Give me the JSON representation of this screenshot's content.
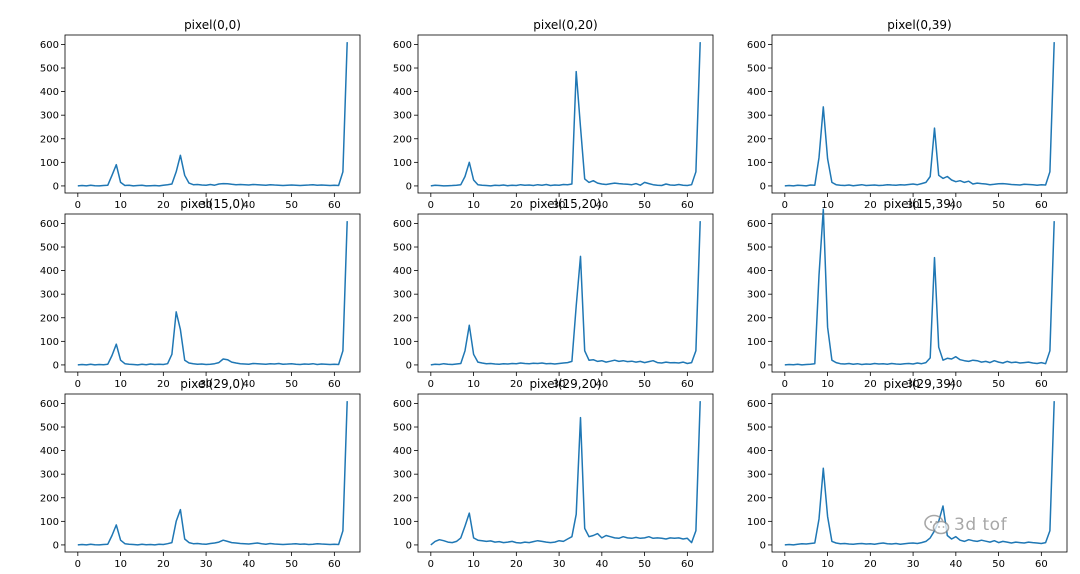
{
  "line_color": "#1f77b4",
  "chart_data": [
    {
      "type": "line",
      "title": "pixel(0,0)",
      "xlim": [
        -3,
        66
      ],
      "ylim": [
        -30,
        640
      ],
      "xticks": [
        0,
        10,
        20,
        30,
        40,
        50,
        60
      ],
      "yticks": [
        0,
        100,
        200,
        300,
        400,
        500,
        600
      ],
      "x": [
        0,
        1,
        2,
        3,
        4,
        5,
        6,
        7,
        8,
        9,
        10,
        11,
        12,
        13,
        14,
        15,
        16,
        17,
        18,
        19,
        20,
        21,
        22,
        23,
        24,
        25,
        26,
        27,
        28,
        29,
        30,
        31,
        32,
        33,
        34,
        35,
        36,
        37,
        38,
        39,
        40,
        41,
        42,
        43,
        44,
        45,
        46,
        47,
        48,
        49,
        50,
        51,
        52,
        53,
        54,
        55,
        56,
        57,
        58,
        59,
        60,
        61,
        62,
        63
      ],
      "values": [
        0,
        2,
        0,
        3,
        1,
        0,
        2,
        3,
        45,
        90,
        15,
        2,
        3,
        0,
        2,
        3,
        0,
        1,
        2,
        0,
        3,
        5,
        8,
        60,
        130,
        45,
        12,
        5,
        6,
        4,
        3,
        6,
        3,
        8,
        10,
        9,
        7,
        5,
        6,
        5,
        4,
        6,
        5,
        4,
        3,
        5,
        4,
        3,
        2,
        3,
        4,
        3,
        2,
        3,
        4,
        5,
        3,
        4,
        3,
        2,
        3,
        2,
        60,
        610
      ]
    },
    {
      "type": "line",
      "title": "pixel(0,20)",
      "xlim": [
        -3,
        66
      ],
      "ylim": [
        -30,
        640
      ],
      "xticks": [
        0,
        10,
        20,
        30,
        40,
        50,
        60
      ],
      "yticks": [
        0,
        100,
        200,
        300,
        400,
        500,
        600
      ],
      "x": [
        0,
        1,
        2,
        3,
        4,
        5,
        6,
        7,
        8,
        9,
        10,
        11,
        12,
        13,
        14,
        15,
        16,
        17,
        18,
        19,
        20,
        21,
        22,
        23,
        24,
        25,
        26,
        27,
        28,
        29,
        30,
        31,
        32,
        33,
        34,
        35,
        36,
        37,
        38,
        39,
        40,
        41,
        42,
        43,
        44,
        45,
        46,
        47,
        48,
        49,
        50,
        51,
        52,
        53,
        54,
        55,
        56,
        57,
        58,
        59,
        60,
        61,
        62,
        63
      ],
      "values": [
        0,
        3,
        2,
        0,
        1,
        2,
        3,
        5,
        40,
        100,
        25,
        5,
        3,
        2,
        0,
        3,
        2,
        4,
        1,
        3,
        2,
        5,
        3,
        4,
        2,
        5,
        3,
        6,
        2,
        4,
        3,
        6,
        5,
        8,
        485,
        250,
        30,
        15,
        22,
        12,
        8,
        6,
        9,
        12,
        10,
        8,
        7,
        5,
        10,
        3,
        15,
        10,
        5,
        3,
        2,
        8,
        4,
        3,
        6,
        3,
        2,
        5,
        60,
        610
      ]
    },
    {
      "type": "line",
      "title": "pixel(0,39)",
      "xlim": [
        -3,
        66
      ],
      "ylim": [
        -30,
        640
      ],
      "xticks": [
        0,
        10,
        20,
        30,
        40,
        50,
        60
      ],
      "yticks": [
        0,
        100,
        200,
        300,
        400,
        500,
        600
      ],
      "x": [
        0,
        1,
        2,
        3,
        4,
        5,
        6,
        7,
        8,
        9,
        10,
        11,
        12,
        13,
        14,
        15,
        16,
        17,
        18,
        19,
        20,
        21,
        22,
        23,
        24,
        25,
        26,
        27,
        28,
        29,
        30,
        31,
        32,
        33,
        34,
        35,
        36,
        37,
        38,
        39,
        40,
        41,
        42,
        43,
        44,
        45,
        46,
        47,
        48,
        49,
        50,
        51,
        52,
        53,
        54,
        55,
        56,
        57,
        58,
        59,
        60,
        61,
        62,
        63
      ],
      "values": [
        0,
        2,
        0,
        3,
        2,
        0,
        4,
        3,
        120,
        335,
        115,
        15,
        5,
        3,
        2,
        4,
        1,
        3,
        5,
        2,
        3,
        4,
        2,
        3,
        5,
        4,
        3,
        5,
        4,
        6,
        8,
        5,
        10,
        15,
        40,
        245,
        45,
        32,
        40,
        25,
        18,
        22,
        15,
        20,
        8,
        12,
        10,
        8,
        5,
        7,
        9,
        10,
        8,
        6,
        5,
        4,
        7,
        6,
        5,
        3,
        5,
        4,
        60,
        610
      ]
    },
    {
      "type": "line",
      "title": "pixel(15,0)",
      "xlim": [
        -3,
        66
      ],
      "ylim": [
        -30,
        640
      ],
      "xticks": [
        0,
        10,
        20,
        30,
        40,
        50,
        60
      ],
      "yticks": [
        0,
        100,
        200,
        300,
        400,
        500,
        600
      ],
      "x": [
        0,
        1,
        2,
        3,
        4,
        5,
        6,
        7,
        8,
        9,
        10,
        11,
        12,
        13,
        14,
        15,
        16,
        17,
        18,
        19,
        20,
        21,
        22,
        23,
        24,
        25,
        26,
        27,
        28,
        29,
        30,
        31,
        32,
        33,
        34,
        35,
        36,
        37,
        38,
        39,
        40,
        41,
        42,
        43,
        44,
        45,
        46,
        47,
        48,
        49,
        50,
        51,
        52,
        53,
        54,
        55,
        56,
        57,
        58,
        59,
        60,
        61,
        62,
        63
      ],
      "values": [
        0,
        2,
        0,
        3,
        0,
        2,
        1,
        3,
        40,
        88,
        20,
        5,
        3,
        2,
        0,
        3,
        1,
        4,
        2,
        3,
        2,
        5,
        45,
        225,
        150,
        20,
        8,
        5,
        3,
        4,
        2,
        3,
        5,
        10,
        25,
        22,
        12,
        8,
        5,
        4,
        3,
        6,
        5,
        4,
        3,
        5,
        4,
        6,
        3,
        4,
        5,
        3,
        2,
        4,
        3,
        5,
        2,
        4,
        3,
        2,
        3,
        2,
        60,
        610
      ]
    },
    {
      "type": "line",
      "title": "pixel(15,20)",
      "xlim": [
        -3,
        66
      ],
      "ylim": [
        -30,
        640
      ],
      "xticks": [
        0,
        10,
        20,
        30,
        40,
        50,
        60
      ],
      "yticks": [
        0,
        100,
        200,
        300,
        400,
        500,
        600
      ],
      "x": [
        0,
        1,
        2,
        3,
        4,
        5,
        6,
        7,
        8,
        9,
        10,
        11,
        12,
        13,
        14,
        15,
        16,
        17,
        18,
        19,
        20,
        21,
        22,
        23,
        24,
        25,
        26,
        27,
        28,
        29,
        30,
        31,
        32,
        33,
        34,
        35,
        36,
        37,
        38,
        39,
        40,
        41,
        42,
        43,
        44,
        45,
        46,
        47,
        48,
        49,
        50,
        51,
        52,
        53,
        54,
        55,
        56,
        57,
        58,
        59,
        60,
        61,
        62,
        63
      ],
      "values": [
        0,
        3,
        2,
        5,
        3,
        2,
        4,
        6,
        60,
        168,
        45,
        12,
        8,
        5,
        6,
        4,
        3,
        5,
        4,
        6,
        5,
        8,
        6,
        5,
        7,
        6,
        8,
        5,
        6,
        4,
        6,
        8,
        10,
        15,
        250,
        460,
        60,
        20,
        22,
        15,
        18,
        12,
        16,
        20,
        15,
        18,
        14,
        16,
        12,
        15,
        10,
        14,
        18,
        10,
        8,
        12,
        9,
        10,
        8,
        12,
        6,
        10,
        60,
        610
      ]
    },
    {
      "type": "line",
      "title": "pixel(15,39)",
      "xlim": [
        -3,
        66
      ],
      "ylim": [
        -30,
        640
      ],
      "xticks": [
        0,
        10,
        20,
        30,
        40,
        50,
        60
      ],
      "yticks": [
        0,
        100,
        200,
        300,
        400,
        500,
        600
      ],
      "x": [
        0,
        1,
        2,
        3,
        4,
        5,
        6,
        7,
        8,
        9,
        10,
        11,
        12,
        13,
        14,
        15,
        16,
        17,
        18,
        19,
        20,
        21,
        22,
        23,
        24,
        25,
        26,
        27,
        28,
        29,
        30,
        31,
        32,
        33,
        34,
        35,
        36,
        37,
        38,
        39,
        40,
        41,
        42,
        43,
        44,
        45,
        46,
        47,
        48,
        49,
        50,
        51,
        52,
        53,
        54,
        55,
        56,
        57,
        58,
        59,
        60,
        61,
        62,
        63
      ],
      "values": [
        0,
        2,
        1,
        3,
        0,
        2,
        3,
        5,
        380,
        660,
        160,
        20,
        10,
        5,
        4,
        6,
        3,
        5,
        2,
        4,
        3,
        6,
        4,
        5,
        3,
        6,
        4,
        3,
        5,
        6,
        4,
        8,
        5,
        10,
        30,
        455,
        75,
        20,
        28,
        25,
        35,
        22,
        18,
        15,
        20,
        18,
        12,
        15,
        10,
        18,
        12,
        8,
        15,
        10,
        12,
        8,
        10,
        12,
        8,
        6,
        10,
        5,
        60,
        610
      ]
    },
    {
      "type": "line",
      "title": "pixel(29,0)",
      "xlim": [
        -3,
        66
      ],
      "ylim": [
        -30,
        640
      ],
      "xticks": [
        0,
        10,
        20,
        30,
        40,
        50,
        60
      ],
      "yticks": [
        0,
        100,
        200,
        300,
        400,
        500,
        600
      ],
      "x": [
        0,
        1,
        2,
        3,
        4,
        5,
        6,
        7,
        8,
        9,
        10,
        11,
        12,
        13,
        14,
        15,
        16,
        17,
        18,
        19,
        20,
        21,
        22,
        23,
        24,
        25,
        26,
        27,
        28,
        29,
        30,
        31,
        32,
        33,
        34,
        35,
        36,
        37,
        38,
        39,
        40,
        41,
        42,
        43,
        44,
        45,
        46,
        47,
        48,
        49,
        50,
        51,
        52,
        53,
        54,
        55,
        56,
        57,
        58,
        59,
        60,
        61,
        62,
        63
      ],
      "values": [
        0,
        2,
        0,
        3,
        1,
        0,
        2,
        3,
        40,
        85,
        20,
        5,
        3,
        2,
        0,
        3,
        1,
        2,
        0,
        3,
        2,
        5,
        10,
        100,
        150,
        25,
        10,
        5,
        6,
        4,
        3,
        6,
        8,
        12,
        20,
        15,
        10,
        8,
        6,
        5,
        4,
        6,
        8,
        5,
        3,
        6,
        4,
        3,
        2,
        3,
        4,
        5,
        3,
        4,
        2,
        3,
        5,
        4,
        3,
        2,
        3,
        2,
        60,
        610
      ]
    },
    {
      "type": "line",
      "title": "pixel(29,20)",
      "xlim": [
        -3,
        66
      ],
      "ylim": [
        -30,
        640
      ],
      "xticks": [
        0,
        10,
        20,
        30,
        40,
        50,
        60
      ],
      "yticks": [
        0,
        100,
        200,
        300,
        400,
        500,
        600
      ],
      "x": [
        0,
        1,
        2,
        3,
        4,
        5,
        6,
        7,
        8,
        9,
        10,
        11,
        12,
        13,
        14,
        15,
        16,
        17,
        18,
        19,
        20,
        21,
        22,
        23,
        24,
        25,
        26,
        27,
        28,
        29,
        30,
        31,
        32,
        33,
        34,
        35,
        36,
        37,
        38,
        39,
        40,
        41,
        42,
        43,
        44,
        45,
        46,
        47,
        48,
        49,
        50,
        51,
        52,
        53,
        54,
        55,
        56,
        57,
        58,
        59,
        60,
        61,
        62,
        63
      ],
      "values": [
        0,
        15,
        22,
        18,
        12,
        10,
        15,
        30,
        80,
        135,
        30,
        20,
        18,
        15,
        17,
        12,
        14,
        10,
        12,
        15,
        10,
        8,
        12,
        10,
        14,
        18,
        15,
        12,
        10,
        12,
        18,
        15,
        25,
        35,
        130,
        540,
        70,
        35,
        40,
        48,
        30,
        40,
        35,
        30,
        28,
        35,
        30,
        28,
        32,
        28,
        30,
        35,
        28,
        30,
        28,
        25,
        30,
        28,
        30,
        25,
        28,
        10,
        60,
        610
      ]
    },
    {
      "type": "line",
      "title": "pixel(29,39)",
      "xlim": [
        -3,
        66
      ],
      "ylim": [
        -30,
        640
      ],
      "xticks": [
        0,
        10,
        20,
        30,
        40,
        50,
        60
      ],
      "yticks": [
        0,
        100,
        200,
        300,
        400,
        500,
        600
      ],
      "x": [
        0,
        1,
        2,
        3,
        4,
        5,
        6,
        7,
        8,
        9,
        10,
        11,
        12,
        13,
        14,
        15,
        16,
        17,
        18,
        19,
        20,
        21,
        22,
        23,
        24,
        25,
        26,
        27,
        28,
        29,
        30,
        31,
        32,
        33,
        34,
        35,
        36,
        37,
        38,
        39,
        40,
        41,
        42,
        43,
        44,
        45,
        46,
        47,
        48,
        49,
        50,
        51,
        52,
        53,
        54,
        55,
        56,
        57,
        58,
        59,
        60,
        61,
        62,
        63
      ],
      "values": [
        0,
        2,
        0,
        3,
        5,
        4,
        6,
        8,
        110,
        325,
        120,
        15,
        8,
        5,
        6,
        4,
        3,
        5,
        6,
        4,
        5,
        3,
        6,
        8,
        5,
        4,
        6,
        3,
        5,
        7,
        8,
        6,
        10,
        15,
        30,
        60,
        100,
        165,
        40,
        25,
        35,
        20,
        15,
        22,
        18,
        15,
        20,
        16,
        12,
        18,
        10,
        15,
        12,
        8,
        12,
        10,
        8,
        12,
        10,
        8,
        6,
        10,
        60,
        610
      ]
    }
  ]
}
